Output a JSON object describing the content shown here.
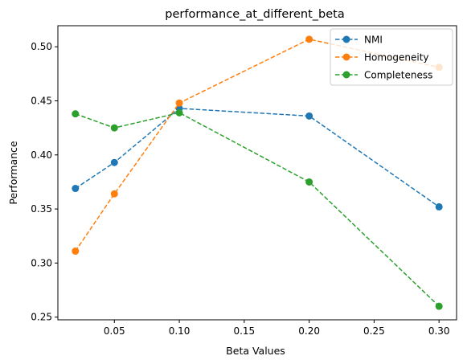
{
  "chart_data": {
    "type": "line",
    "title": "performance_at_different_beta",
    "xlabel": "Beta Values",
    "ylabel": "Performance",
    "x": [
      0.02,
      0.05,
      0.1,
      0.2,
      0.3
    ],
    "xlim": [
      0.0065,
      0.3135
    ],
    "ylim": [
      0.2475,
      0.5195
    ],
    "xticks": [
      0.05,
      0.1,
      0.15,
      0.2,
      0.25,
      0.3
    ],
    "xtick_labels": [
      "0.05",
      "0.10",
      "0.15",
      "0.20",
      "0.25",
      "0.30"
    ],
    "yticks": [
      0.25,
      0.3,
      0.35,
      0.4,
      0.45,
      0.5
    ],
    "ytick_labels": [
      "0.25",
      "0.30",
      "0.35",
      "0.40",
      "0.45",
      "0.50"
    ],
    "grid": false,
    "legend_position": "top-right",
    "series": [
      {
        "name": "NMI",
        "color": "#1f77b4",
        "values": [
          0.369,
          0.393,
          0.443,
          0.436,
          0.352
        ]
      },
      {
        "name": "Homogeneity",
        "color": "#ff7f0e",
        "values": [
          0.311,
          0.364,
          0.448,
          0.507,
          0.481
        ]
      },
      {
        "name": "Completeness",
        "color": "#2ca02c",
        "values": [
          0.438,
          0.425,
          0.439,
          0.375,
          0.26
        ]
      }
    ]
  }
}
